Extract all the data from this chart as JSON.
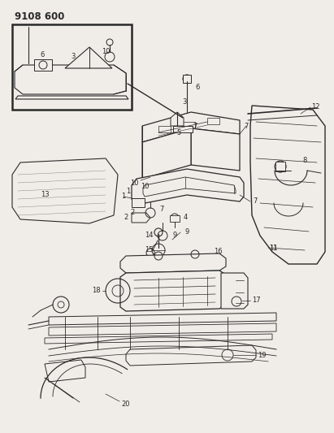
{
  "title": "9108 600",
  "bg_color": "#f0ede8",
  "line_color": "#2a2a2a",
  "title_fontsize": 8.5,
  "label_fontsize": 6,
  "fig_w": 4.11,
  "fig_h": 5.33,
  "dpi": 100
}
